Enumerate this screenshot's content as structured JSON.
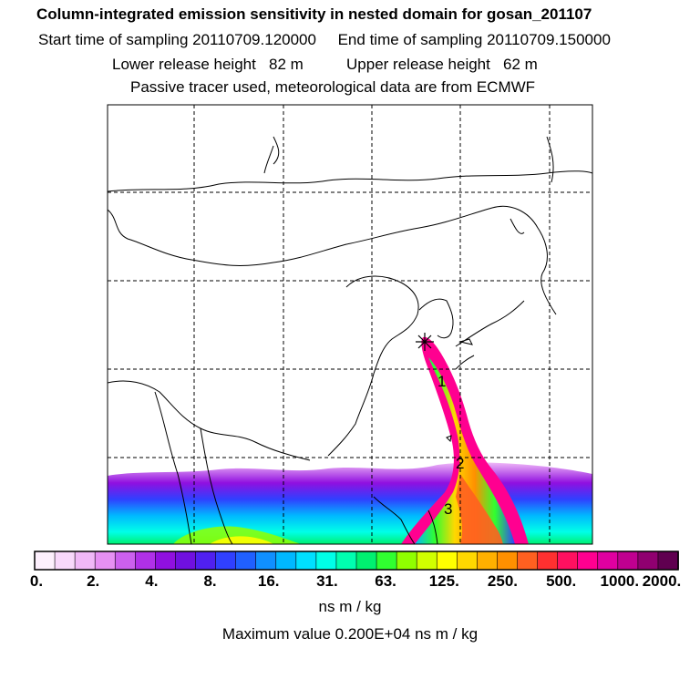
{
  "header": {
    "title": "Column-integrated emission sensitivity in nested domain for gosan_201107",
    "start_label": "Start time of sampling",
    "start_value": "20110709.120000",
    "end_label": "End time of sampling",
    "end_value": "20110709.150000",
    "lower_label": "Lower release height",
    "lower_value": "82 m",
    "upper_label": "Upper release height",
    "upper_value": "62 m",
    "tracer_note": "Passive tracer used, meteorological data are from ECMWF"
  },
  "map": {
    "markers": [
      {
        "id": "1",
        "label": "1"
      },
      {
        "id": "2",
        "label": "2"
      },
      {
        "id": "3",
        "label": "3"
      }
    ],
    "release_site_icon": "asterisk-icon"
  },
  "colorbar": {
    "tick_labels": [
      "0.",
      "2.",
      "4.",
      "8.",
      "16.",
      "31.",
      "63.",
      "125.",
      "250.",
      "500.",
      "1000.",
      "2000."
    ],
    "colors": [
      "#fdf0fd",
      "#f8d8fb",
      "#f0b8f7",
      "#e690f3",
      "#cc60ee",
      "#b030e8",
      "#9010e0",
      "#7010e0",
      "#5020f0",
      "#3040ff",
      "#2060ff",
      "#1090ff",
      "#00b8ff",
      "#00e0ff",
      "#00ffe8",
      "#00ffb0",
      "#00f070",
      "#30ff30",
      "#90ff00",
      "#d0ff00",
      "#ffff00",
      "#ffd800",
      "#ffb000",
      "#ff9000",
      "#ff6020",
      "#ff3030",
      "#ff1060",
      "#ff0090",
      "#e000a0",
      "#c00090",
      "#900070",
      "#600050"
    ],
    "unit": "ns m / kg",
    "max_text": "Maximum value  0.200E+04 ns m / kg"
  }
}
